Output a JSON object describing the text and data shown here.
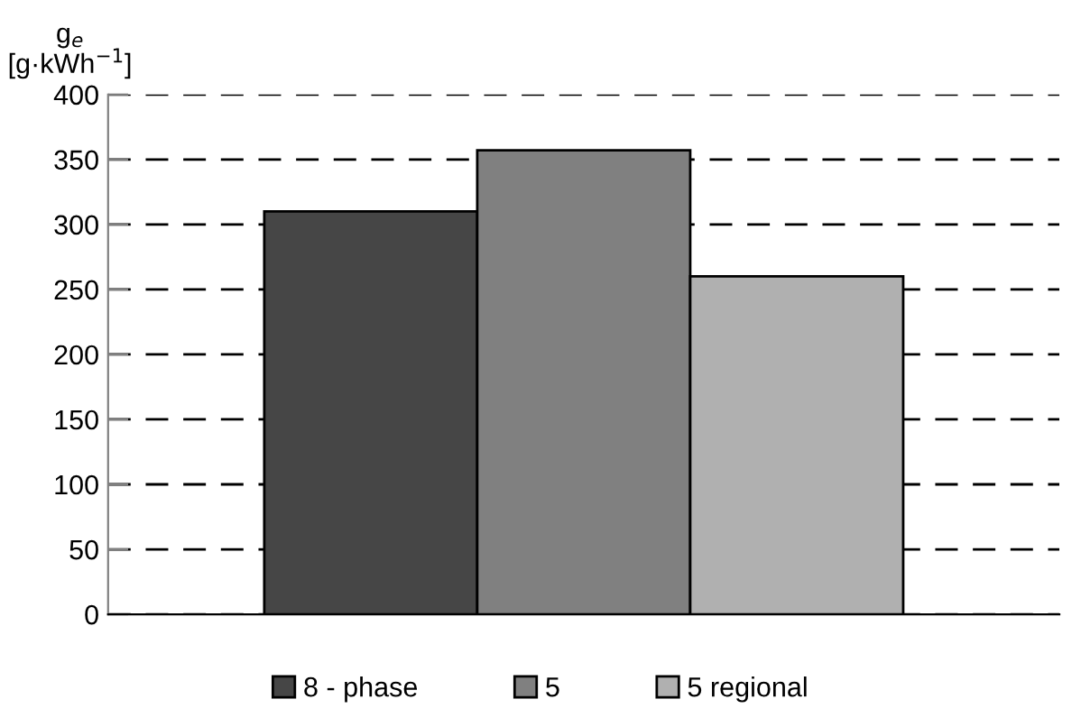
{
  "chart_data": {
    "type": "bar",
    "ylabel": "g$_{e}$\n[g·kWh$^{−1}$]",
    "categories": [
      null
    ],
    "series": [
      {
        "name": "8 - phase",
        "color": "#464646",
        "values": [
          310
        ]
      },
      {
        "name": "5",
        "color": "#808080",
        "values": [
          357
        ]
      },
      {
        "name": "5 regional",
        "color": "#b0b0b0",
        "values": [
          260
        ]
      }
    ],
    "ylim": [
      0,
      400
    ],
    "yticks": [
      0,
      50,
      100,
      150,
      200,
      250,
      300,
      350,
      400
    ],
    "grid": "y",
    "legend": "bottom"
  }
}
